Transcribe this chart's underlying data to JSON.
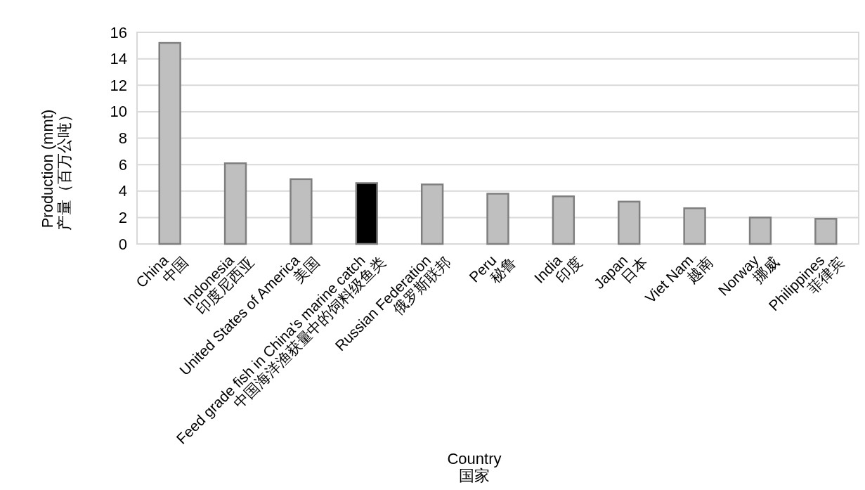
{
  "chart_data": {
    "type": "bar",
    "xlabel": "Country\n国家",
    "ylabel": "Production (mmt)\n产量（百万公吨）",
    "categories": [
      "China\n中国",
      "Indonesia\n印度尼西亚",
      "United States of America\n美国",
      "Feed grade fish in China's marine catch\n中国海洋渔获量中的饲料级鱼类",
      "Russian Federation\n俄罗斯联邦",
      "Peru\n秘鲁",
      "India\n印度",
      "Japan\n日本",
      "Viet Nam\n越南",
      "Norway\n挪威",
      "Philippines\n菲律宾"
    ],
    "values": [
      15.2,
      6.1,
      4.9,
      4.6,
      4.5,
      3.8,
      3.6,
      3.2,
      2.7,
      2.0,
      1.9
    ],
    "colors": [
      "#bfbfbf",
      "#bfbfbf",
      "#bfbfbf",
      "#000000",
      "#bfbfbf",
      "#bfbfbf",
      "#bfbfbf",
      "#bfbfbf",
      "#bfbfbf",
      "#bfbfbf",
      "#bfbfbf"
    ],
    "ylim": [
      0,
      16
    ],
    "yticks": [
      0,
      2,
      4,
      6,
      8,
      10,
      12,
      14,
      16
    ],
    "grid": "y"
  }
}
